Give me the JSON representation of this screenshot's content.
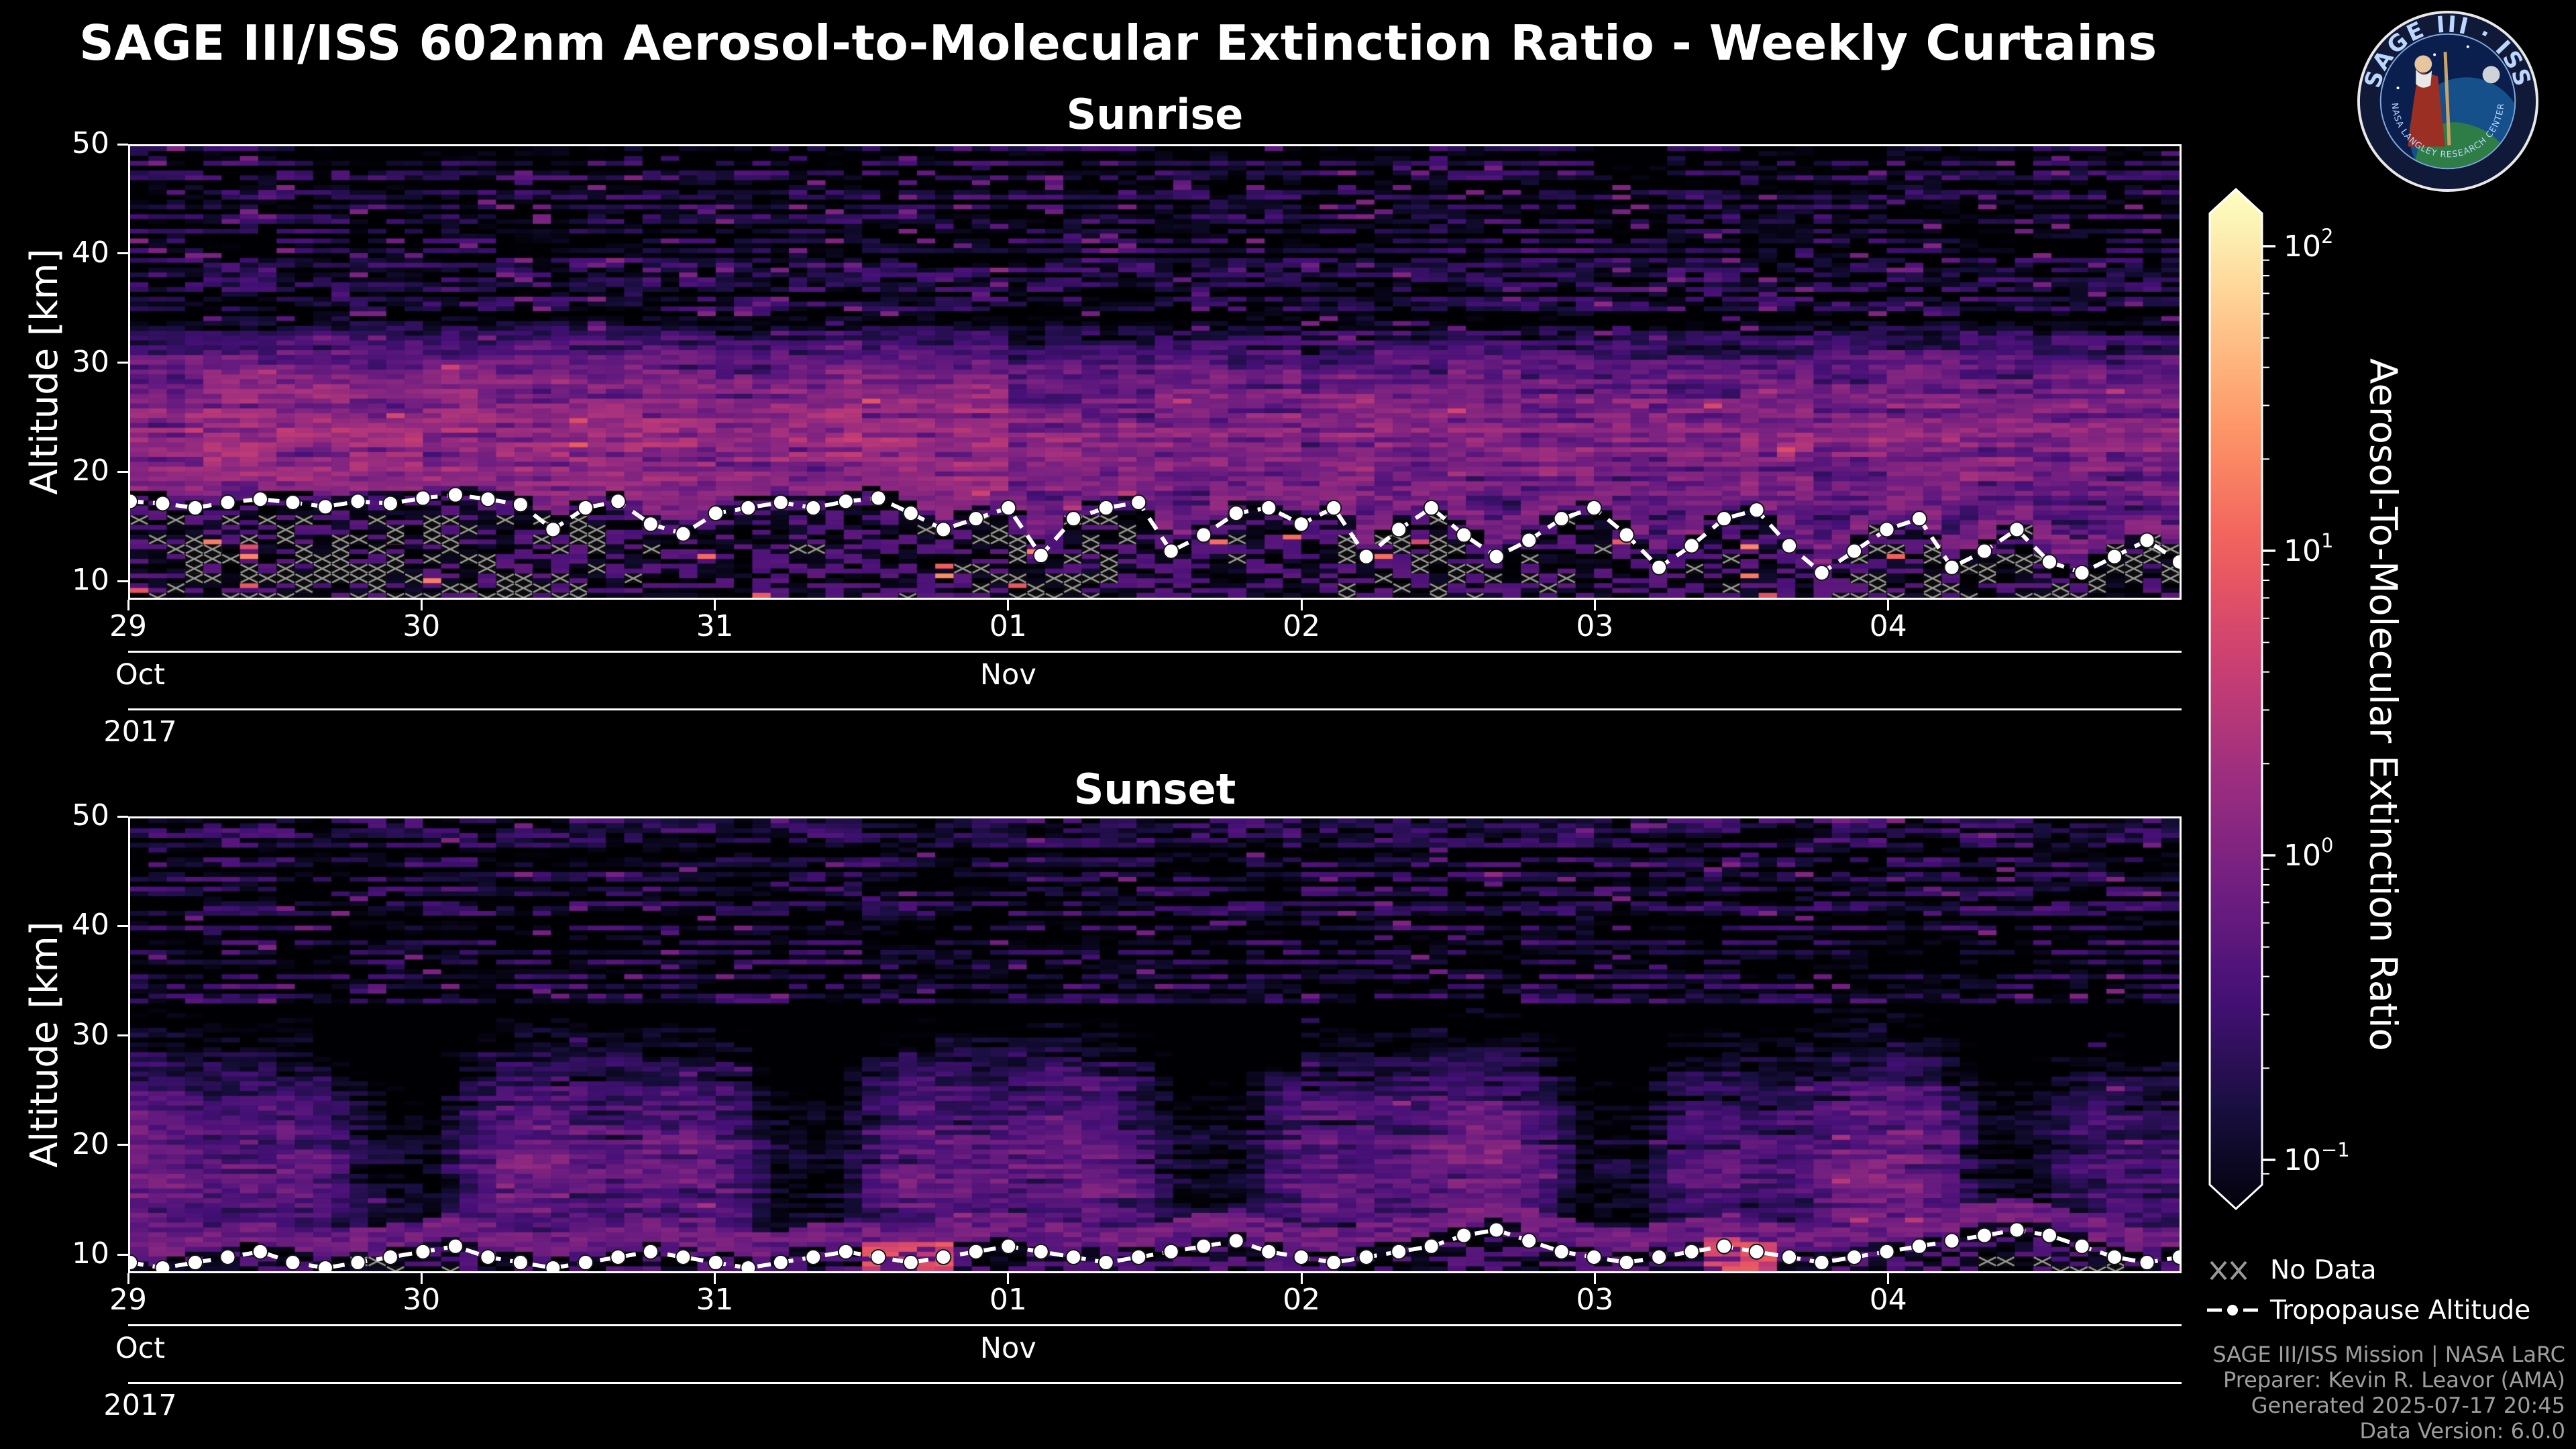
{
  "title": "SAGE III/ISS 602nm Aerosol-to-Molecular Extinction Ratio - Weekly Curtains",
  "logo": {
    "arc_title": "SAGE III · ISS",
    "arc_bottom": "NASA LANGLEY RESEARCH CENTER"
  },
  "panels": [
    {
      "subtitle": "Sunrise",
      "ylabel": "Altitude [km]",
      "x_tick_labels": [
        "29",
        "30",
        "31",
        "01",
        "02",
        "03",
        "04"
      ],
      "months": [
        {
          "label": "Oct",
          "day": 0
        },
        {
          "label": "Nov",
          "day": 3
        }
      ],
      "year": "2017"
    },
    {
      "subtitle": "Sunset",
      "ylabel": "Altitude [km]",
      "x_tick_labels": [
        "29",
        "30",
        "31",
        "01",
        "02",
        "03",
        "04"
      ],
      "months": [
        {
          "label": "Oct",
          "day": 0
        },
        {
          "label": "Nov",
          "day": 3
        }
      ],
      "year": "2017"
    }
  ],
  "colorbar": {
    "label": "Aerosol-To-Molecular Extinction Ratio",
    "scale": "log",
    "range": [
      0.1,
      100
    ],
    "ticks": [
      {
        "base": "10",
        "exp": "2",
        "log": 2
      },
      {
        "base": "10",
        "exp": "1",
        "log": 1
      },
      {
        "base": "10",
        "exp": "0",
        "log": 0
      },
      {
        "base": "10",
        "exp": "−1",
        "log": -1
      }
    ],
    "colormap": [
      "#000004",
      "#180f3e",
      "#451077",
      "#721f81",
      "#9f2f7f",
      "#cd4071",
      "#f1605d",
      "#fd9567",
      "#fec98d",
      "#fcfdbf"
    ]
  },
  "legend": {
    "no_data": "No Data",
    "tropopause": "Tropopause Altitude"
  },
  "footer": [
    "SAGE III/ISS Mission | NASA LaRC",
    "Preparer: Kevin R. Leavor (AMA)",
    "Generated 2025-07-17 20:45",
    "Data Version: 6.0.0"
  ],
  "chart_data": [
    {
      "type": "heatmap",
      "title": "Sunrise",
      "ylabel": "Altitude [km]",
      "x_start_date": "2017-10-29",
      "x_range_days": [
        0,
        7
      ],
      "x_tick_days": [
        "29 Oct",
        "30 Oct",
        "31 Oct",
        "01 Nov",
        "02 Nov",
        "03 Nov",
        "04 Nov"
      ],
      "y_range_km": [
        8.3,
        50
      ],
      "y_ticks_km": [
        10,
        20,
        30,
        40,
        50
      ],
      "value_scale": {
        "type": "log",
        "min": 0.1,
        "max": 100,
        "quantity": "602nm aerosol-to-molecular extinction ratio",
        "colormap": "magma"
      },
      "tropopause_altitude_km": {
        "x_days": {
          "start": 0,
          "end": 7,
          "count": 64
        },
        "y": [
          17.2,
          17.0,
          16.6,
          17.1,
          17.4,
          17.1,
          16.7,
          17.2,
          17.0,
          17.5,
          17.8,
          17.4,
          16.9,
          14.6,
          16.6,
          17.2,
          15.1,
          14.2,
          16.1,
          16.6,
          17.1,
          16.6,
          17.2,
          17.5,
          16.1,
          14.6,
          15.6,
          16.6,
          12.2,
          15.6,
          16.6,
          17.1,
          12.6,
          14.1,
          16.1,
          16.6,
          15.1,
          16.6,
          12.1,
          14.6,
          16.6,
          14.1,
          12.1,
          13.6,
          15.6,
          16.6,
          14.1,
          11.1,
          13.1,
          15.6,
          16.4,
          13.1,
          10.6,
          12.6,
          14.6,
          15.6,
          11.1,
          12.6,
          14.6,
          11.6,
          10.6,
          12.1,
          13.6,
          11.6
        ]
      },
      "texture": {
        "seed": 11,
        "layer_amp": 1.5,
        "layer_center_km": 23,
        "layer_sigma_km": 7,
        "left_boost_until_day": 3,
        "left_boost": 1.3,
        "right_scale": 0.92,
        "fade_above_km": 32,
        "fade_scale_km": 3.2,
        "speckle_prob": 0.06,
        "band_lo": 0.35,
        "band_rand": 1.1,
        "subtrop_bright_prob": 0.012,
        "nodata_clusters": [
          [
            0.05,
            1.6
          ],
          [
            2.85,
            3.35
          ],
          [
            4.15,
            4.65
          ],
          [
            5.85,
            7.0
          ]
        ],
        "nodata_prob_in": 0.4,
        "nodata_prob_out": 0.07,
        "nodata_max_alt_km": 16.5
      }
    },
    {
      "type": "heatmap",
      "title": "Sunset",
      "ylabel": "Altitude [km]",
      "x_start_date": "2017-10-29",
      "x_range_days": [
        0,
        7
      ],
      "x_tick_days": [
        "29 Oct",
        "30 Oct",
        "31 Oct",
        "01 Nov",
        "02 Nov",
        "03 Nov",
        "04 Nov"
      ],
      "y_range_km": [
        8.3,
        50
      ],
      "y_ticks_km": [
        10,
        20,
        30,
        40,
        50
      ],
      "value_scale": {
        "type": "log",
        "min": 0.1,
        "max": 100,
        "quantity": "602nm aerosol-to-molecular extinction ratio",
        "colormap": "magma"
      },
      "tropopause_altitude_km": {
        "x_days": {
          "start": 0,
          "end": 7,
          "count": 64
        },
        "y": [
          9.1,
          8.6,
          9.1,
          9.6,
          10.1,
          9.1,
          8.6,
          9.1,
          9.6,
          10.1,
          10.6,
          9.6,
          9.1,
          8.6,
          9.1,
          9.6,
          10.1,
          9.6,
          9.1,
          8.6,
          9.1,
          9.6,
          10.1,
          9.6,
          9.1,
          9.6,
          10.1,
          10.6,
          10.1,
          9.6,
          9.1,
          9.6,
          10.1,
          10.6,
          11.1,
          10.1,
          9.6,
          9.1,
          9.6,
          10.1,
          10.6,
          11.6,
          12.1,
          11.1,
          10.1,
          9.6,
          9.1,
          9.6,
          10.1,
          10.6,
          10.1,
          9.6,
          9.1,
          9.6,
          10.1,
          10.6,
          11.1,
          11.6,
          12.1,
          11.6,
          10.6,
          9.6,
          9.1,
          9.6
        ]
      },
      "texture": {
        "seed": 22,
        "layer_amp": 0.85,
        "layer_center_km": 17.5,
        "layer_sigma_km": 8.5,
        "plume_base": 0.55,
        "plumes": [
          [
            4.4,
            0.8,
            0.4
          ],
          [
            9.3,
            2.1,
            0.25
          ]
        ],
        "fade_above_km": 33,
        "fade_scale_km": 3.2,
        "speckle_prob": 0.035,
        "band_lo": 0.3,
        "band_rand": 0.8,
        "bottom_band_alt_km": 11.5,
        "red_spots": [
          [
            2.65,
            0.18
          ],
          [
            5.5,
            0.12
          ]
        ],
        "nodata_clusters": [
          [
            0.75,
            1.15
          ],
          [
            6.25,
            6.9
          ]
        ],
        "nodata_prob_in": 0.3,
        "nodata_prob_out": 0.015,
        "nodata_max_alt_km": 9.6
      }
    }
  ]
}
